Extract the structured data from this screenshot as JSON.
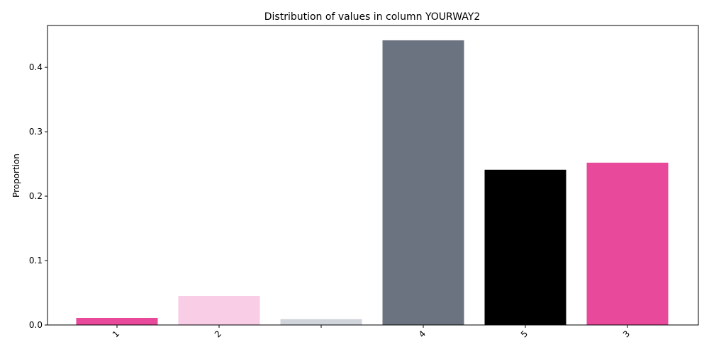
{
  "chart_data": {
    "type": "bar",
    "title": "Distribution of values in column YOURWAY2",
    "xlabel": "",
    "ylabel": "Proportion",
    "categories": [
      "1",
      "2",
      "",
      "4",
      "5",
      "3"
    ],
    "values": [
      0.011,
      0.045,
      0.009,
      0.442,
      0.241,
      0.252
    ],
    "colors": [
      "#e9499a",
      "#f9cde6",
      "#d1d5db",
      "#6b7280",
      "#000000",
      "#e9499a"
    ],
    "ylim": [
      0,
      0.465
    ],
    "yticks": [
      0.0,
      0.1,
      0.2,
      0.3,
      0.4
    ],
    "ytick_labels": [
      "0.0",
      "0.1",
      "0.2",
      "0.3",
      "0.4"
    ],
    "grid": false,
    "legend": "none"
  }
}
